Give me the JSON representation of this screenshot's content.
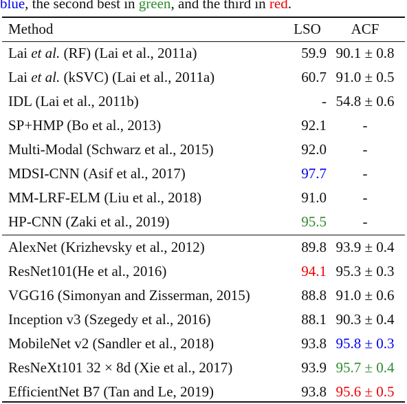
{
  "caption": {
    "best": "blue",
    "t1": ", the second best in ",
    "second": "green",
    "t2": ", and the third in ",
    "third": "red",
    "t3": "."
  },
  "colors": {
    "best": "#0000ee",
    "second": "#2e8b2e",
    "third": "#ee0000"
  },
  "table": {
    "headers": {
      "method": "Method",
      "lso": "LSO",
      "acf": "ACF"
    },
    "group1": [
      {
        "pre": "Lai ",
        "ital": "et al.",
        "post": " (RF) (Lai et al., 2011a)",
        "lso": "59.9",
        "acf": "90.1 ± 0.8",
        "lso_rank": "",
        "acf_rank": ""
      },
      {
        "pre": "Lai ",
        "ital": "et al.",
        "post": " (kSVC) (Lai et al., 2011a)",
        "lso": "60.7",
        "acf": "91.0 ± 0.5",
        "lso_rank": "",
        "acf_rank": ""
      },
      {
        "pre": "IDL (Lai et al., 2011b)",
        "ital": "",
        "post": "",
        "lso": "-",
        "acf": "54.8 ± 0.6",
        "lso_rank": "",
        "acf_rank": ""
      },
      {
        "pre": "SP+HMP (Bo et al., 2013)",
        "ital": "",
        "post": "",
        "lso": "92.1",
        "acf": "-",
        "lso_rank": "",
        "acf_rank": ""
      },
      {
        "pre": "Multi-Modal (Schwarz et al., 2015)",
        "ital": "",
        "post": "",
        "lso": "92.0",
        "acf": "-",
        "lso_rank": "",
        "acf_rank": ""
      },
      {
        "pre": "MDSI-CNN (Asif et al., 2017)",
        "ital": "",
        "post": "",
        "lso": "97.7",
        "acf": "-",
        "lso_rank": "blue",
        "acf_rank": ""
      },
      {
        "pre": "MM-LRF-ELM (Liu et al., 2018)",
        "ital": "",
        "post": "",
        "lso": "91.0",
        "acf": "-",
        "lso_rank": "",
        "acf_rank": ""
      },
      {
        "pre": "HP-CNN (Zaki et al., 2019)",
        "ital": "",
        "post": "",
        "lso": "95.5",
        "acf": "-",
        "lso_rank": "green",
        "acf_rank": ""
      }
    ],
    "group2": [
      {
        "pre": "AlexNet (Krizhevsky et al., 2012)",
        "ital": "",
        "post": "",
        "lso": "89.8",
        "acf": "93.9 ± 0.4",
        "lso_rank": "",
        "acf_rank": ""
      },
      {
        "pre": "ResNet101(He et al., 2016)",
        "ital": "",
        "post": "",
        "lso": "94.1",
        "acf": "95.3 ± 0.3",
        "lso_rank": "red",
        "acf_rank": ""
      },
      {
        "pre": "VGG16 (Simonyan and Zisserman, 2015)",
        "ital": "",
        "post": "",
        "lso": "88.8",
        "acf": "91.0 ± 0.6",
        "lso_rank": "",
        "acf_rank": ""
      },
      {
        "pre": "Inception v3 (Szegedy et al., 2016)",
        "ital": "",
        "post": "",
        "lso": "88.1",
        "acf": "90.3 ± 0.4",
        "lso_rank": "",
        "acf_rank": ""
      },
      {
        "pre": "MobileNet v2 (Sandler et al., 2018)",
        "ital": "",
        "post": "",
        "lso": "93.8",
        "acf": "95.8 ± 0.3",
        "lso_rank": "",
        "acf_rank": "blue"
      },
      {
        "pre": "ResNeXt101 32 × 8d (Xie et al., 2017)",
        "ital": "",
        "post": "",
        "lso": "93.9",
        "acf": "95.7 ± 0.4",
        "lso_rank": "",
        "acf_rank": "green"
      },
      {
        "pre": "EfficientNet B7 (Tan and Le, 2019)",
        "ital": "",
        "post": "",
        "lso": "93.8",
        "acf": "95.6 ± 0.5",
        "lso_rank": "",
        "acf_rank": "red"
      }
    ]
  }
}
